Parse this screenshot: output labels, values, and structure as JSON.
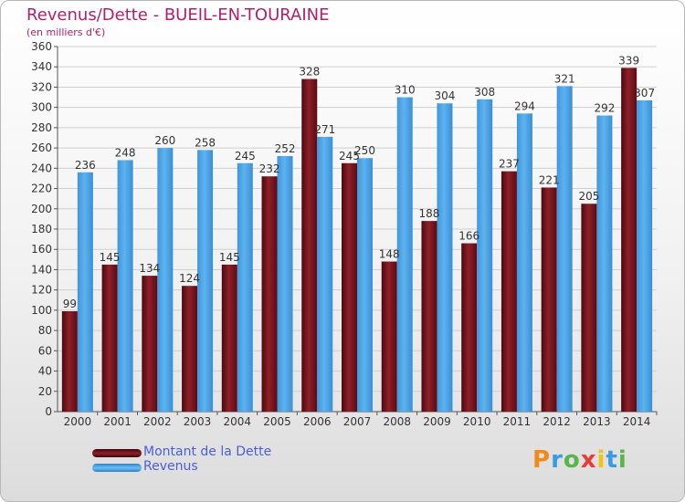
{
  "title": "Revenus/Dette - BUEIL-EN-TOURAINE",
  "subtitle": "(en milliers d'€)",
  "colors": {
    "dette": "#7a1018",
    "revenus": "#4aa3e6",
    "title": "#b0206a",
    "legend_text": "#4a5ed8"
  },
  "legend": [
    {
      "label": "Montant de la Dette",
      "color": "#7a1018"
    },
    {
      "label": "Revenus",
      "color": "#4aa3e6"
    }
  ],
  "logo": {
    "letters": [
      "P",
      "r",
      "o",
      "x",
      "i",
      "t",
      "i"
    ],
    "colors": [
      "#f08a1c",
      "#3a9be0",
      "#59b44a",
      "#e83c3c",
      "#f0c21c",
      "#3a9be0",
      "#59b44a"
    ]
  },
  "chart_data": {
    "type": "bar",
    "categories": [
      "2000",
      "2001",
      "2002",
      "2003",
      "2004",
      "2005",
      "2006",
      "2007",
      "2008",
      "2009",
      "2010",
      "2011",
      "2012",
      "2013",
      "2014"
    ],
    "series": [
      {
        "name": "Montant de la Dette",
        "values": [
          99,
          145,
          134,
          124,
          145,
          232,
          328,
          245,
          148,
          188,
          166,
          237,
          221,
          205,
          339
        ]
      },
      {
        "name": "Revenus",
        "values": [
          236,
          248,
          260,
          258,
          245,
          252,
          271,
          250,
          310,
          304,
          308,
          294,
          321,
          292,
          307
        ]
      }
    ],
    "ylim": [
      0,
      360
    ],
    "yticks": [
      0,
      20,
      40,
      60,
      80,
      100,
      120,
      140,
      160,
      180,
      200,
      220,
      240,
      260,
      280,
      300,
      320,
      340,
      360
    ],
    "grid": true,
    "legend_position": "bottom-left"
  }
}
